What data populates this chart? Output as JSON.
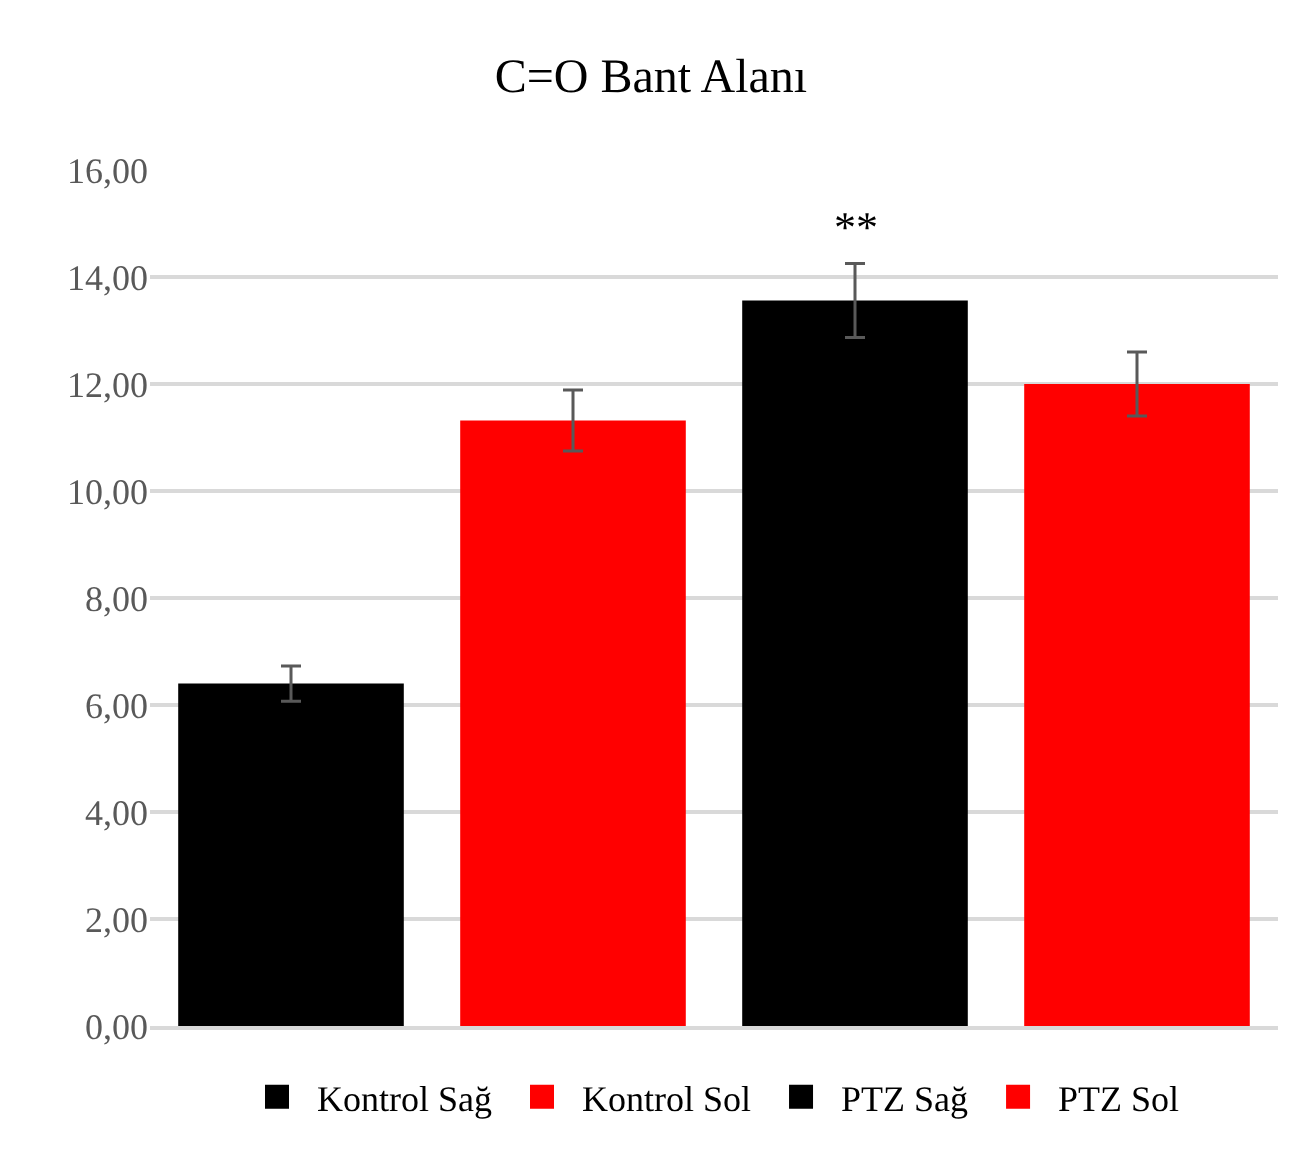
{
  "chart_data": {
    "type": "bar",
    "title": "C=O Bant Alanı",
    "categories": [
      null,
      null,
      null,
      null
    ],
    "series": [
      {
        "name": "Kontrol Sağ",
        "color": "#000000",
        "values": [
          6.4,
          null,
          null,
          null
        ],
        "errors": [
          0.33,
          null,
          null,
          null
        ]
      },
      {
        "name": "Kontrol Sol",
        "color": "#ff0000",
        "values": [
          null,
          11.32,
          null,
          null
        ],
        "errors": [
          null,
          0.57,
          null,
          null
        ]
      },
      {
        "name": "PTZ Sağ",
        "color": "#000000",
        "values": [
          null,
          null,
          13.56,
          null
        ],
        "errors": [
          null,
          null,
          0.69,
          null
        ]
      },
      {
        "name": "PTZ Sol",
        "color": "#ff0000",
        "values": [
          null,
          null,
          null,
          12.0
        ],
        "errors": [
          null,
          null,
          null,
          0.6
        ]
      }
    ],
    "annotations": [
      "**"
    ],
    "ylim": [
      0,
      16
    ],
    "yticks": [
      {
        "value": 0,
        "label": "0,00"
      },
      {
        "value": 2,
        "label": "2,00"
      },
      {
        "value": 4,
        "label": "4,00"
      },
      {
        "value": 6,
        "label": "6,00"
      },
      {
        "value": 8,
        "label": "8,00"
      },
      {
        "value": 10,
        "label": "10,00"
      },
      {
        "value": 12,
        "label": "12,00"
      },
      {
        "value": 14,
        "label": "14,00"
      },
      {
        "value": 16,
        "label": "16,00"
      }
    ],
    "grid": "y",
    "legend": "bottom"
  }
}
